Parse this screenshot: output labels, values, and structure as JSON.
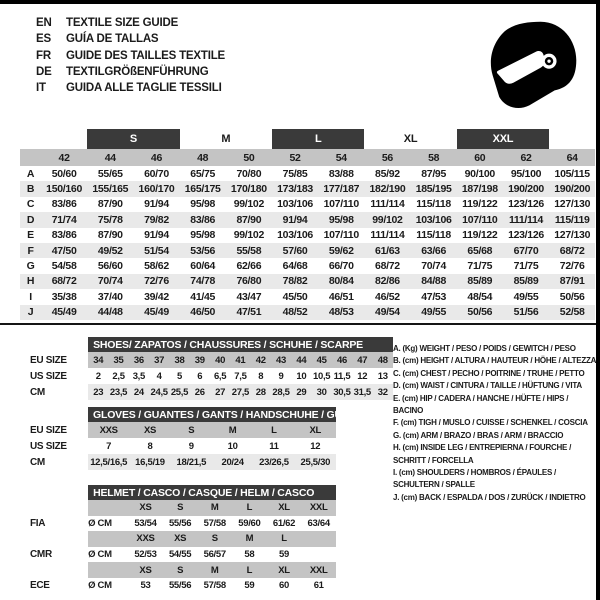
{
  "colors": {
    "dark_bar": "#3a3a3a",
    "size_row_gray": "#c4c4c4",
    "stripe_gray": "#e9e9e9",
    "border": "#000000"
  },
  "page": {
    "languages": [
      {
        "code": "EN",
        "title": "TEXTILE SIZE GUIDE"
      },
      {
        "code": "ES",
        "title": "GUÍA DE TALLAS"
      },
      {
        "code": "FR",
        "title": "GUIDE DES TAILLES TEXTILE"
      },
      {
        "code": "DE",
        "title": "TEXTILGRÖßENFÜHRUNG"
      },
      {
        "code": "IT",
        "title": "GUIDA ALLE TAGLIE TESSILI"
      }
    ],
    "helmet_icon": "racing-helmet"
  },
  "main_table": {
    "size_groups": [
      {
        "label": "S"
      },
      {
        "label": "M"
      },
      {
        "label": "L"
      },
      {
        "label": "XL"
      },
      {
        "label": "XXL"
      }
    ],
    "sizes": [
      "42",
      "44",
      "46",
      "48",
      "50",
      "52",
      "54",
      "56",
      "58",
      "60",
      "62",
      "64"
    ],
    "rows": [
      {
        "label": "A",
        "values": [
          "50/60",
          "55/65",
          "60/70",
          "65/75",
          "70/80",
          "75/85",
          "83/88",
          "85/92",
          "87/95",
          "90/100",
          "95/100",
          "105/115"
        ]
      },
      {
        "label": "B",
        "values": [
          "150/160",
          "155/165",
          "160/170",
          "165/175",
          "170/180",
          "173/183",
          "177/187",
          "182/190",
          "185/195",
          "187/198",
          "190/200",
          "190/200"
        ]
      },
      {
        "label": "C",
        "values": [
          "83/86",
          "87/90",
          "91/94",
          "95/98",
          "99/102",
          "103/106",
          "107/110",
          "111/114",
          "115/118",
          "119/122",
          "123/126",
          "127/130"
        ]
      },
      {
        "label": "D",
        "values": [
          "71/74",
          "75/78",
          "79/82",
          "83/86",
          "87/90",
          "91/94",
          "95/98",
          "99/102",
          "103/106",
          "107/110",
          "111/114",
          "115/119"
        ]
      },
      {
        "label": "E",
        "values": [
          "83/86",
          "87/90",
          "91/94",
          "95/98",
          "99/102",
          "103/106",
          "107/110",
          "111/114",
          "115/118",
          "119/122",
          "123/126",
          "127/130"
        ]
      },
      {
        "label": "F",
        "values": [
          "47/50",
          "49/52",
          "51/54",
          "53/56",
          "55/58",
          "57/60",
          "59/62",
          "61/63",
          "63/66",
          "65/68",
          "67/70",
          "68/72"
        ]
      },
      {
        "label": "G",
        "values": [
          "54/58",
          "56/60",
          "58/62",
          "60/64",
          "62/66",
          "64/68",
          "66/70",
          "68/72",
          "70/74",
          "71/75",
          "71/75",
          "72/76"
        ]
      },
      {
        "label": "H",
        "values": [
          "68/72",
          "70/74",
          "72/76",
          "74/78",
          "76/80",
          "78/82",
          "80/84",
          "82/86",
          "84/88",
          "85/89",
          "85/89",
          "87/91"
        ]
      },
      {
        "label": "I",
        "values": [
          "35/38",
          "37/40",
          "39/42",
          "41/45",
          "43/47",
          "45/50",
          "46/51",
          "46/52",
          "47/53",
          "48/54",
          "49/55",
          "50/56"
        ]
      },
      {
        "label": "J",
        "values": [
          "45/49",
          "44/48",
          "45/49",
          "46/50",
          "47/51",
          "48/52",
          "48/53",
          "49/54",
          "49/55",
          "50/56",
          "51/56",
          "52/58"
        ]
      }
    ]
  },
  "shoes": {
    "title": "SHOES/ ZAPATOS / CHAUSSURES / SCHUHE / SCARPE",
    "row_labels": {
      "eu": "EU SIZE",
      "us": "US SIZE",
      "cm": "CM"
    },
    "eu": [
      "34",
      "35",
      "36",
      "37",
      "38",
      "39",
      "40",
      "41",
      "42",
      "43",
      "44",
      "45",
      "46",
      "47",
      "48"
    ],
    "us": [
      "2",
      "2,5",
      "3,5",
      "4",
      "5",
      "6",
      "6,5",
      "7,5",
      "8",
      "9",
      "10",
      "10,5",
      "11,5",
      "12",
      "13"
    ],
    "cm": [
      "23",
      "23,5",
      "24",
      "24,5",
      "25,5",
      "26",
      "27",
      "27,5",
      "28",
      "28,5",
      "29",
      "30",
      "30,5",
      "31,5",
      "32"
    ]
  },
  "gloves": {
    "title": "GLOVES / GUANTES / GANTS / HANDSCHUHE / GUANTI",
    "row_labels": {
      "eu": "EU SIZE",
      "us": "US SIZE",
      "cm": "CM"
    },
    "eu": [
      "XXS",
      "XS",
      "S",
      "M",
      "L",
      "XL"
    ],
    "us": [
      "7",
      "8",
      "9",
      "10",
      "11",
      "12"
    ],
    "cm": [
      "12,5/16,5",
      "16,5/19",
      "18/21,5",
      "20/24",
      "23/26,5",
      "25,5/30"
    ]
  },
  "helmet": {
    "title": "HELMET / CASCO / CASQUE / HELM / CASCO",
    "diameter_label": "Ø CM",
    "sections": [
      {
        "label": "FIA",
        "sizes": [
          "XS",
          "S",
          "M",
          "L",
          "XL",
          "XXL"
        ],
        "values": [
          "53/54",
          "55/56",
          "57/58",
          "59/60",
          "61/62",
          "63/64"
        ]
      },
      {
        "label": "CMR",
        "sizes": [
          "XXS",
          "XS",
          "S",
          "M",
          "L",
          ""
        ],
        "values": [
          "52/53",
          "54/55",
          "56/57",
          "58",
          "59",
          ""
        ]
      },
      {
        "label": "ECE",
        "sizes": [
          "XS",
          "S",
          "M",
          "L",
          "XL",
          "XXL"
        ],
        "values": [
          "53",
          "55/56",
          "57/58",
          "59",
          "60",
          "61"
        ]
      }
    ]
  },
  "legend": {
    "items": [
      "A. (Kg) WEIGHT / PESO / POIDS / GEWITCH / PESO",
      "B. (cm) HEIGHT / ALTURA / HAUTEUR / HÖHE / ALTEZZA",
      "C. (cm) CHEST / PECHO / POITRINE / TRUHE / PETTO",
      "D. (cm) WAIST / CINTURA / TAILLE / HÜFTUNG / VITA",
      "E. (cm) HIP / CADERA / HANCHE / HÜFTE / HIPS / BACINO",
      "F. (cm) TIGH / MUSLO / CUISSE / SCHENKEL / COSCIA",
      "G. (cm) ARM / BRAZO / BRAS / ARM / BRACCIO",
      "H. (cm) INSIDE LEG / ENTREPIERNA / FOURCHE / SCHRITT / FORCELLA",
      "I. (cm) SHOULDERS / HOMBROS / ÉPAULES / SCHULTERN / SPALLE",
      "J. (cm) BACK / ESPALDA / DOS / ZURÜCK / INDIETRO"
    ]
  }
}
